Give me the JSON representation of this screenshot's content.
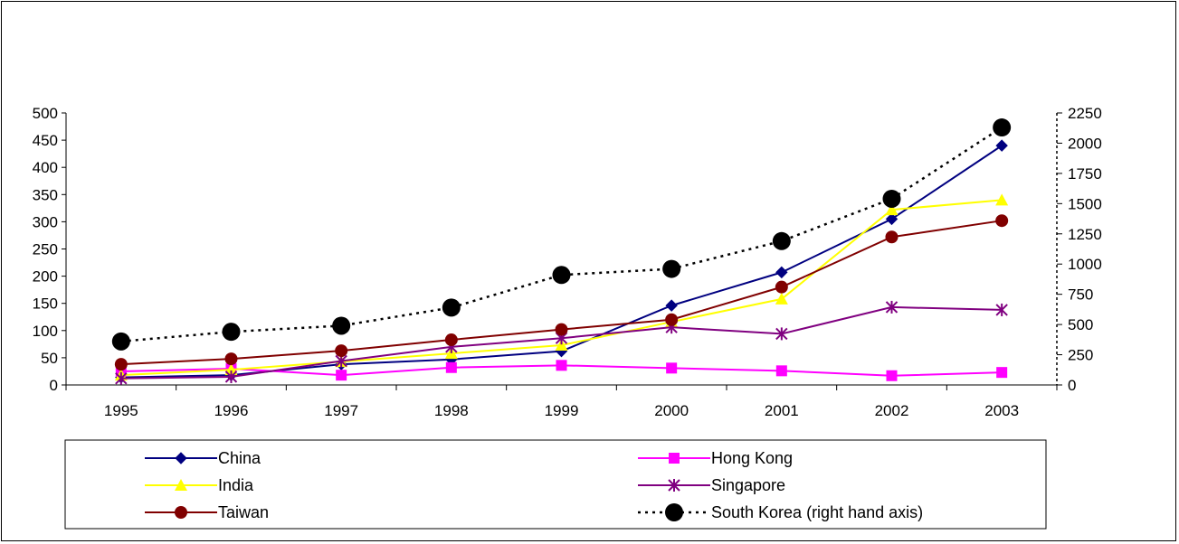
{
  "chart_data": {
    "type": "line",
    "title": "",
    "xlabel": "",
    "ylabel": "",
    "categories": [
      "1995",
      "1996",
      "1997",
      "1998",
      "1999",
      "2000",
      "2001",
      "2002",
      "2003"
    ],
    "y_left": {
      "ylim": [
        0,
        500
      ],
      "ticks": [
        "0",
        "50",
        "100",
        "150",
        "200",
        "250",
        "300",
        "350",
        "400",
        "450",
        "500"
      ]
    },
    "y_right": {
      "ylim": [
        0,
        2250
      ],
      "ticks": [
        "0",
        "250",
        "500",
        "750",
        "1000",
        "1250",
        "1500",
        "1750",
        "2000",
        "2250"
      ]
    },
    "grid": false,
    "legend_position": "bottom",
    "series": [
      {
        "name": "China",
        "axis": "left",
        "color": "#000080",
        "marker": "diamond",
        "dashed": false,
        "values": [
          14,
          18,
          38,
          47,
          62,
          146,
          207,
          305,
          440
        ]
      },
      {
        "name": "Hong Kong",
        "axis": "left",
        "color": "#ff00ff",
        "marker": "square",
        "dashed": false,
        "values": [
          25,
          30,
          18,
          32,
          36,
          31,
          26,
          17,
          23
        ]
      },
      {
        "name": "India",
        "axis": "left",
        "color": "#ffff00",
        "marker": "triangle",
        "dashed": false,
        "values": [
          18,
          28,
          43,
          58,
          73,
          116,
          158,
          322,
          340
        ]
      },
      {
        "name": "Singapore",
        "axis": "left",
        "color": "#800080",
        "marker": "asterisk",
        "dashed": false,
        "values": [
          12,
          15,
          44,
          70,
          86,
          106,
          94,
          143,
          138
        ]
      },
      {
        "name": "Taiwan",
        "axis": "left",
        "color": "#800000",
        "marker": "circle",
        "dashed": false,
        "values": [
          38,
          48,
          63,
          83,
          102,
          120,
          180,
          272,
          302
        ]
      },
      {
        "name": "South Korea (right hand axis)",
        "axis": "right",
        "color": "#000000",
        "marker": "bigcircle",
        "dashed": true,
        "values": [
          360,
          440,
          490,
          640,
          910,
          960,
          1190,
          1540,
          2130
        ]
      }
    ]
  }
}
